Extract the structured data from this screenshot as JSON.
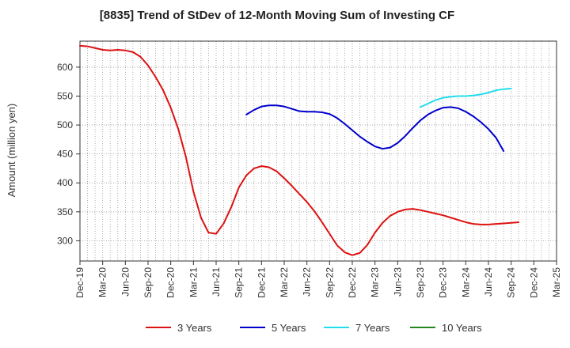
{
  "chart_data": {
    "type": "line",
    "title": "[8835]  Trend of StDev of 12-Month Moving Sum of Investing CF",
    "xlabel": "",
    "ylabel": "Amount (million yen)",
    "x_tick_labels": [
      "Dec-19",
      "Mar-20",
      "Jun-20",
      "Sep-20",
      "Dec-20",
      "Mar-21",
      "Jun-21",
      "Sep-21",
      "Dec-21",
      "Mar-22",
      "Jun-22",
      "Sep-22",
      "Dec-22",
      "Mar-23",
      "Jun-23",
      "Sep-23",
      "Dec-23",
      "Mar-24",
      "Jun-24",
      "Sep-24",
      "Dec-24",
      "Mar-25"
    ],
    "y_ticks": [
      300,
      350,
      400,
      450,
      500,
      550,
      600
    ],
    "ylim": [
      265,
      645
    ],
    "grid": true,
    "legend_position": "bottom",
    "series": [
      {
        "name": "3 Years",
        "color": "#dd1111",
        "start_index": 0,
        "values": [
          637,
          636,
          633,
          630,
          629,
          630,
          629,
          626,
          618,
          603,
          583,
          560,
          530,
          493,
          445,
          385,
          340,
          314,
          312,
          330,
          358,
          392,
          413,
          425,
          429,
          427,
          420,
          408,
          395,
          381,
          367,
          351,
          332,
          312,
          292,
          280,
          275,
          279,
          293,
          314,
          331,
          343,
          350,
          354,
          355,
          353,
          350,
          347,
          344,
          340,
          336,
          332,
          329,
          328,
          328,
          329,
          330,
          331,
          332
        ]
      },
      {
        "name": "5 Years",
        "color": "#0000cc",
        "start_index": 22,
        "values": [
          518,
          526,
          532,
          534,
          534,
          532,
          528,
          524,
          523,
          523,
          522,
          519,
          512,
          502,
          491,
          480,
          471,
          463,
          459,
          461,
          469,
          481,
          495,
          508,
          518,
          525,
          530,
          531,
          529,
          523,
          515,
          505,
          493,
          478,
          455
        ]
      },
      {
        "name": "7 Years",
        "color": "#22ddee",
        "start_index": 45,
        "values": [
          531,
          537,
          543,
          547,
          549,
          550,
          550,
          551,
          553,
          556,
          560,
          562,
          563
        ]
      },
      {
        "name": "10 Years",
        "color": "#228822",
        "start_index": 0,
        "values": []
      }
    ]
  }
}
